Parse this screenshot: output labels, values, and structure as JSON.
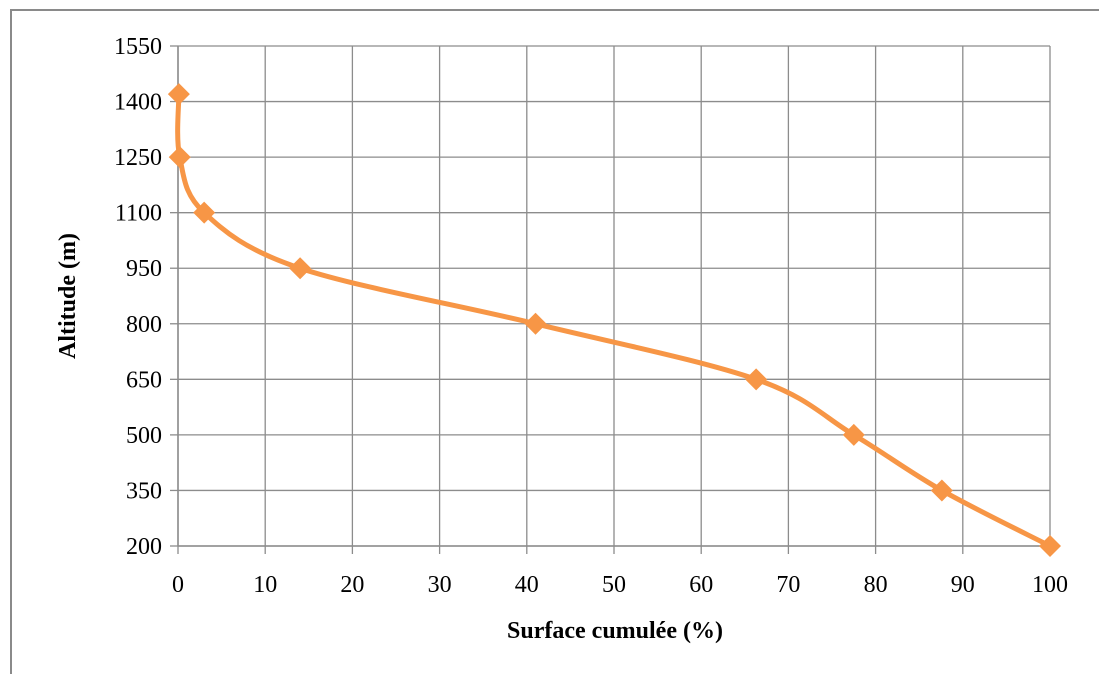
{
  "chart_data": {
    "type": "line",
    "title": "",
    "xlabel": "Surface cumulée (%)",
    "ylabel": "Altitude (m)",
    "xlim": [
      0,
      100
    ],
    "ylim": [
      200,
      1550
    ],
    "xticks": [
      "0",
      "10",
      "20",
      "30",
      "40",
      "50",
      "60",
      "70",
      "80",
      "90",
      "100"
    ],
    "yticks": [
      "200",
      "350",
      "500",
      "650",
      "800",
      "950",
      "1100",
      "1250",
      "1400",
      "1550"
    ],
    "grid": true,
    "legend": "none",
    "line_color": "#F79646",
    "marker": "diamond",
    "smooth": true,
    "series": [
      {
        "x": [
          0.1,
          0.2,
          3.0,
          14.0,
          41.0,
          66.3,
          77.5,
          87.6,
          100.0
        ],
        "y": [
          1420,
          1250,
          1100,
          950,
          800,
          650,
          500,
          350,
          200
        ]
      }
    ]
  }
}
